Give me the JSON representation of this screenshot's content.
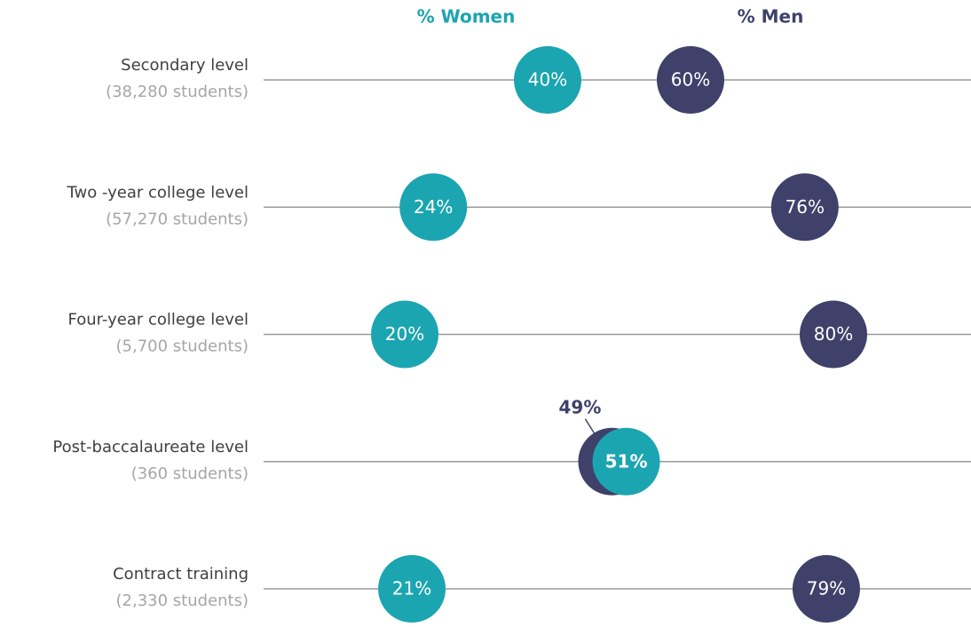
{
  "chart_data": {
    "type": "dot",
    "categories": [
      "Secondary level",
      "Two -year college level",
      "Four-year college level",
      "Post-baccalaureate level",
      "Contract training"
    ],
    "category_notes": [
      "(38,280 students)",
      "(57,270 students)",
      "(5,700 students)",
      "(360 students)",
      "(2,330 students)"
    ],
    "xlim": [
      0,
      100
    ],
    "series": [
      {
        "name": "% Women",
        "color": "#1ba5b0",
        "values": [
          40,
          24,
          20,
          51,
          21
        ],
        "value_labels": [
          "40%",
          "24%",
          "20%",
          "51%",
          "21%"
        ]
      },
      {
        "name": "% Men",
        "color": "#3f416a",
        "values": [
          60,
          76,
          80,
          49,
          79
        ],
        "value_labels": [
          "60%",
          "76%",
          "80%",
          "49%",
          "79%"
        ]
      }
    ]
  }
}
